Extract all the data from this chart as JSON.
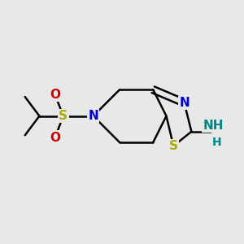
{
  "bg_color": "#e8e8e8",
  "bond_color": "#000000",
  "bond_width": 1.8,
  "bg_color_hex": "#e8e8e8",
  "colors": {
    "S": "#aaaa00",
    "N": "#0000cc",
    "O": "#cc0000",
    "NH2": "#008888",
    "black": "#000000"
  },
  "font_size": 11
}
